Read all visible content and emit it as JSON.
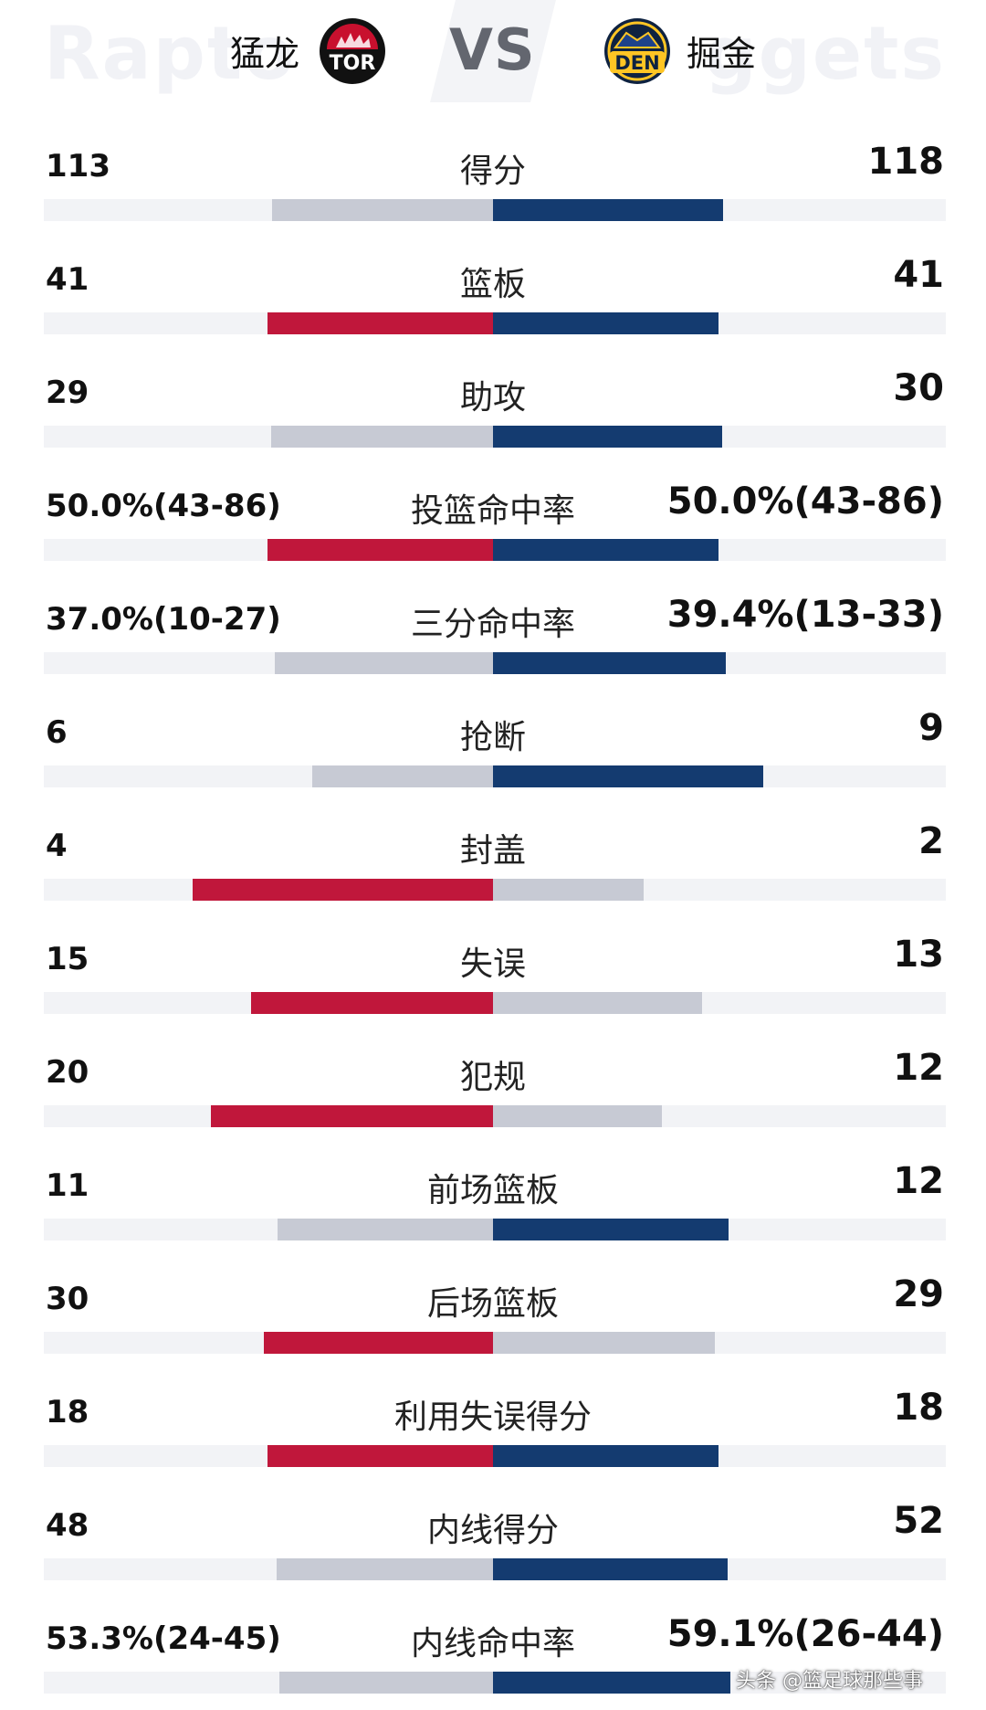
{
  "header": {
    "home_bg_word": "Rapto",
    "away_bg_word": "ggets",
    "home_name": "猛龙",
    "away_name": "掘金",
    "vs": "VS",
    "home_logo_text": "TOR",
    "away_logo_text": "DEN"
  },
  "colors": {
    "home_win": "#c0173b",
    "away_win": "#143b70",
    "lose": "#c7cad4",
    "track": "#f2f3f6"
  },
  "stats": [
    {
      "label": "得分",
      "home": "113",
      "away": "118",
      "home_share": 0.489,
      "away_share": 0.511,
      "home_wins": false,
      "away_wins": true
    },
    {
      "label": "篮板",
      "home": "41",
      "away": "41",
      "home_share": 0.5,
      "away_share": 0.5,
      "home_wins": true,
      "away_wins": true
    },
    {
      "label": "助攻",
      "home": "29",
      "away": "30",
      "home_share": 0.492,
      "away_share": 0.508,
      "home_wins": false,
      "away_wins": true
    },
    {
      "label": "投篮命中率",
      "home": "50.0%(43-86)",
      "away": "50.0%(43-86)",
      "home_share": 0.5,
      "away_share": 0.5,
      "home_wins": true,
      "away_wins": true
    },
    {
      "label": "三分命中率",
      "home": "37.0%(10-27)",
      "away": "39.4%(13-33)",
      "home_share": 0.484,
      "away_share": 0.516,
      "home_wins": false,
      "away_wins": true
    },
    {
      "label": "抢断",
      "home": "6",
      "away": "9",
      "home_share": 0.4,
      "away_share": 0.6,
      "home_wins": false,
      "away_wins": true
    },
    {
      "label": "封盖",
      "home": "4",
      "away": "2",
      "home_share": 0.667,
      "away_share": 0.333,
      "home_wins": true,
      "away_wins": false
    },
    {
      "label": "失误",
      "home": "15",
      "away": "13",
      "home_share": 0.536,
      "away_share": 0.464,
      "home_wins": true,
      "away_wins": false
    },
    {
      "label": "犯规",
      "home": "20",
      "away": "12",
      "home_share": 0.625,
      "away_share": 0.375,
      "home_wins": true,
      "away_wins": false
    },
    {
      "label": "前场篮板",
      "home": "11",
      "away": "12",
      "home_share": 0.478,
      "away_share": 0.522,
      "home_wins": false,
      "away_wins": true
    },
    {
      "label": "后场篮板",
      "home": "30",
      "away": "29",
      "home_share": 0.508,
      "away_share": 0.492,
      "home_wins": true,
      "away_wins": false
    },
    {
      "label": "利用失误得分",
      "home": "18",
      "away": "18",
      "home_share": 0.5,
      "away_share": 0.5,
      "home_wins": true,
      "away_wins": true
    },
    {
      "label": "内线得分",
      "home": "48",
      "away": "52",
      "home_share": 0.48,
      "away_share": 0.52,
      "home_wins": false,
      "away_wins": true
    },
    {
      "label": "内线命中率",
      "home": "53.3%(24-45)",
      "away": "59.1%(26-44)",
      "home_share": 0.474,
      "away_share": 0.526,
      "home_wins": false,
      "away_wins": true
    }
  ],
  "watermark": "头条 @篮足球那些事"
}
